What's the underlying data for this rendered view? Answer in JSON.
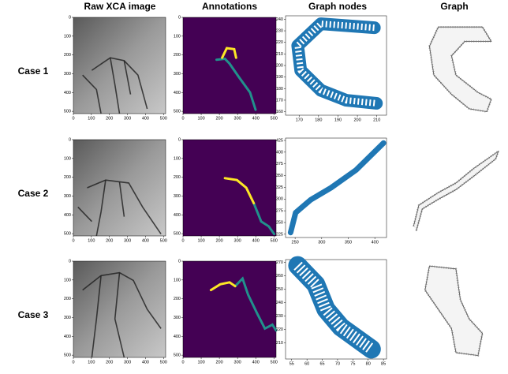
{
  "header": {
    "columns": [
      "Raw XCA image",
      "Annotations",
      "Graph nodes",
      "Graph"
    ]
  },
  "rows": [
    {
      "label": "Case 1",
      "image": {
        "xlim": [
          0,
          512
        ],
        "ylim": [
          512,
          0
        ],
        "xticks": [
          0,
          100,
          200,
          300,
          400,
          500
        ],
        "yticks": [
          0,
          100,
          200,
          300,
          400,
          500
        ]
      },
      "annotations": {
        "xlim": [
          0,
          512
        ],
        "ylim": [
          512,
          0
        ],
        "xticks": [
          0,
          100,
          200,
          300,
          400,
          500
        ],
        "yticks": [
          0,
          100,
          200,
          300,
          400,
          500
        ]
      },
      "graph_nodes": {
        "xlim": [
          163,
          215
        ],
        "ylim": [
          157,
          243
        ],
        "xticks": [
          170,
          180,
          190,
          200,
          210
        ],
        "yticks": [
          160,
          170,
          180,
          190,
          200,
          210,
          220,
          230,
          240
        ]
      }
    },
    {
      "label": "Case 2",
      "image": {
        "xlim": [
          0,
          512
        ],
        "ylim": [
          512,
          0
        ],
        "xticks": [
          0,
          100,
          200,
          300,
          400,
          500
        ],
        "yticks": [
          0,
          100,
          200,
          300,
          400,
          500
        ]
      },
      "annotations": {
        "xlim": [
          0,
          512
        ],
        "ylim": [
          512,
          0
        ],
        "xticks": [
          0,
          100,
          200,
          300,
          400,
          500
        ],
        "yticks": [
          0,
          100,
          200,
          300,
          400,
          500
        ]
      },
      "graph_nodes": {
        "xlim": [
          232,
          422
        ],
        "ylim": [
          218,
          430
        ],
        "xticks": [
          250,
          300,
          350,
          400
        ],
        "yticks": [
          225,
          250,
          275,
          300,
          325,
          350,
          375,
          400,
          425
        ]
      }
    },
    {
      "label": "Case 3",
      "image": {
        "xlim": [
          0,
          512
        ],
        "ylim": [
          512,
          0
        ],
        "xticks": [
          0,
          100,
          200,
          300,
          400,
          500
        ],
        "yticks": [
          0,
          100,
          200,
          300,
          400,
          500
        ]
      },
      "annotations": {
        "xlim": [
          0,
          512
        ],
        "ylim": [
          512,
          0
        ],
        "xticks": [
          0,
          100,
          200,
          300,
          400,
          500
        ],
        "yticks": [
          0,
          100,
          200,
          300,
          400,
          500
        ]
      },
      "graph_nodes": {
        "xlim": [
          53,
          86
        ],
        "ylim": [
          198,
          272
        ],
        "xticks": [
          55,
          60,
          65,
          70,
          75,
          80,
          85
        ],
        "yticks": [
          210,
          220,
          230,
          240,
          250,
          260,
          270
        ]
      }
    }
  ]
}
